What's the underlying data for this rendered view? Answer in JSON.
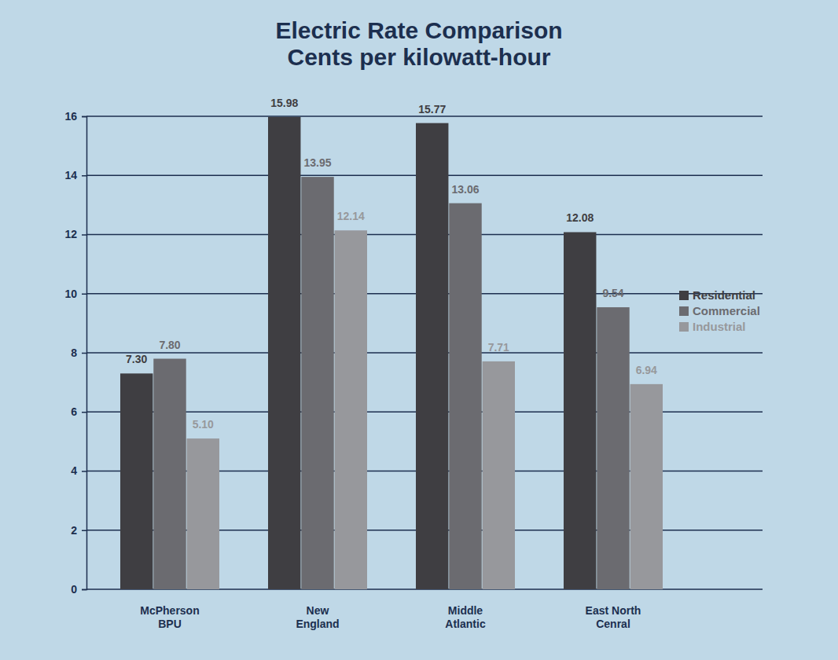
{
  "chart_data": {
    "type": "bar",
    "title": "Electric Rate Comparison",
    "subtitle": "Cents per kilowatt-hour",
    "categories": [
      "McPherson\nBPU",
      "New\nEngland",
      "Middle\nAtlantic",
      "East North\nCenral"
    ],
    "series": [
      {
        "name": "Residential",
        "color": "#3f3e42",
        "values": [
          7.3,
          15.98,
          15.77,
          12.08
        ],
        "value_labels": [
          "7.30",
          "15.98",
          "15.77",
          "12.08"
        ]
      },
      {
        "name": "Commercial",
        "color": "#6b6b70",
        "values": [
          7.8,
          13.95,
          13.06,
          9.54
        ],
        "value_labels": [
          "7.80",
          "13.95",
          "13.06",
          "9.54"
        ]
      },
      {
        "name": "Industrial",
        "color": "#97989c",
        "values": [
          5.1,
          12.14,
          7.71,
          6.94
        ],
        "value_labels": [
          "5.10",
          "12.14",
          "7.71",
          "6.94"
        ]
      }
    ],
    "ylim": [
      0,
      16
    ],
    "yticks": [
      0,
      2,
      4,
      6,
      8,
      10,
      12,
      14,
      16
    ],
    "grid": true,
    "legend": "right",
    "data_labels": true
  }
}
